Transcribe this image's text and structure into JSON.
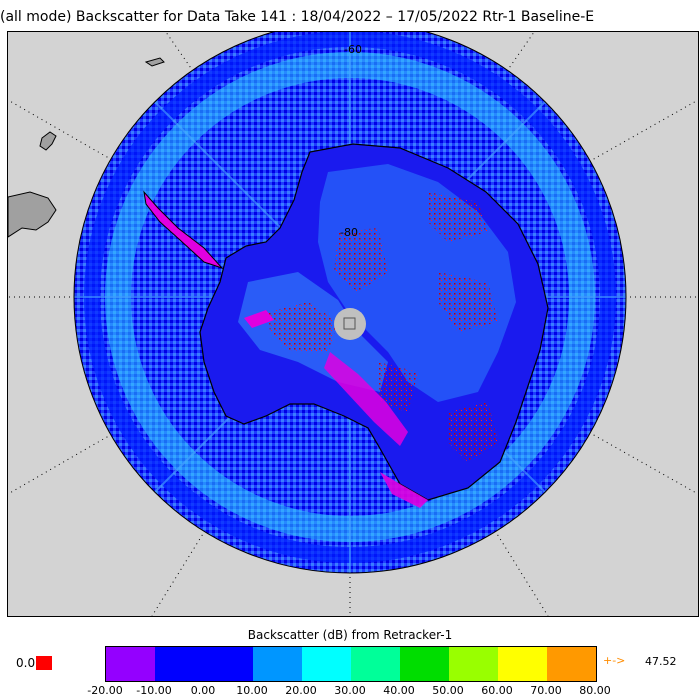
{
  "title": "(all mode) Backscatter for Data Take 141 : 18/04/2022 – 17/05/2022 Rtr-1 Baseline-E",
  "map": {
    "lat_labels": [
      "-60",
      "-80"
    ]
  },
  "colorbar": {
    "title": "Backscatter (dB) from Retracker-1",
    "colors": [
      "#ff00ff",
      "#9400ff",
      "#0000ff",
      "#0000ff",
      "#0096ff",
      "#00ffff",
      "#00ff99",
      "#00dd00",
      "#99ff00",
      "#ffff00",
      "#ff9900"
    ],
    "ticks": [
      "-20.00",
      "-10.00",
      "0.00",
      "10.00",
      "20.00",
      "30.00",
      "40.00",
      "50.00",
      "60.00",
      "70.00",
      "80.00"
    ],
    "underflow_label": "0.0",
    "underflow_color": "#ff0000",
    "overflow_arrow": "+->",
    "overflow_value": "47.52"
  }
}
